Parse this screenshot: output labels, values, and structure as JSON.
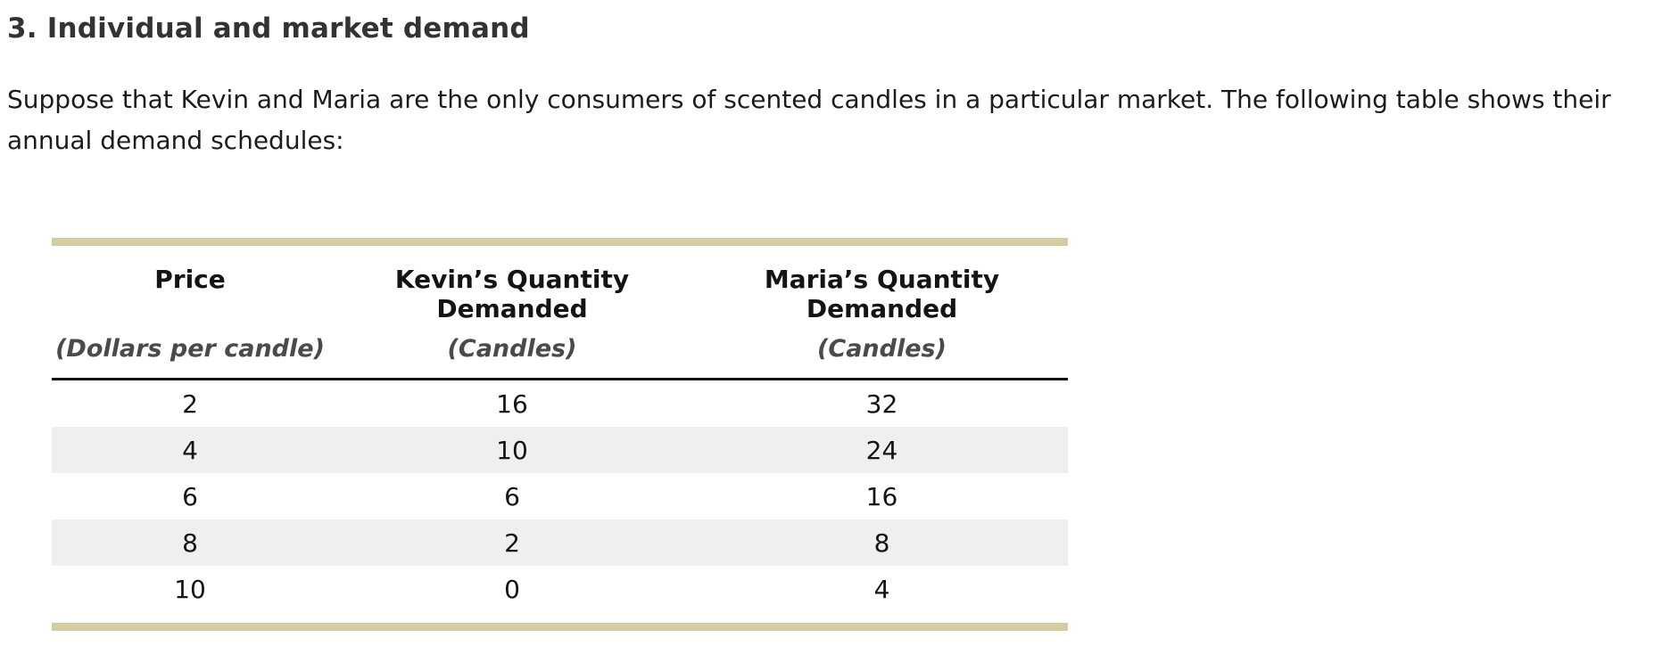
{
  "page": {
    "heading": "3. Individual and market demand",
    "paragraph": "Suppose that Kevin and Maria are the only consumers of scented candles in a particular market. The following table shows their annual demand schedules:"
  },
  "table": {
    "columns": [
      {
        "title": "Price",
        "subtitle": "(Dollars per candle)"
      },
      {
        "title": "Kevin’s Quantity Demanded",
        "subtitle": "(Candles)"
      },
      {
        "title": "Maria’s Quantity Demanded",
        "subtitle": "(Candles)"
      }
    ],
    "rows": [
      [
        "2",
        "16",
        "32"
      ],
      [
        "4",
        "10",
        "24"
      ],
      [
        "6",
        "6",
        "16"
      ],
      [
        "8",
        "2",
        "8"
      ],
      [
        "10",
        "0",
        "4"
      ]
    ],
    "colors": {
      "accent_bar": "#d5cca1",
      "stripe": "#efefef",
      "header_rule": "#111111"
    }
  }
}
